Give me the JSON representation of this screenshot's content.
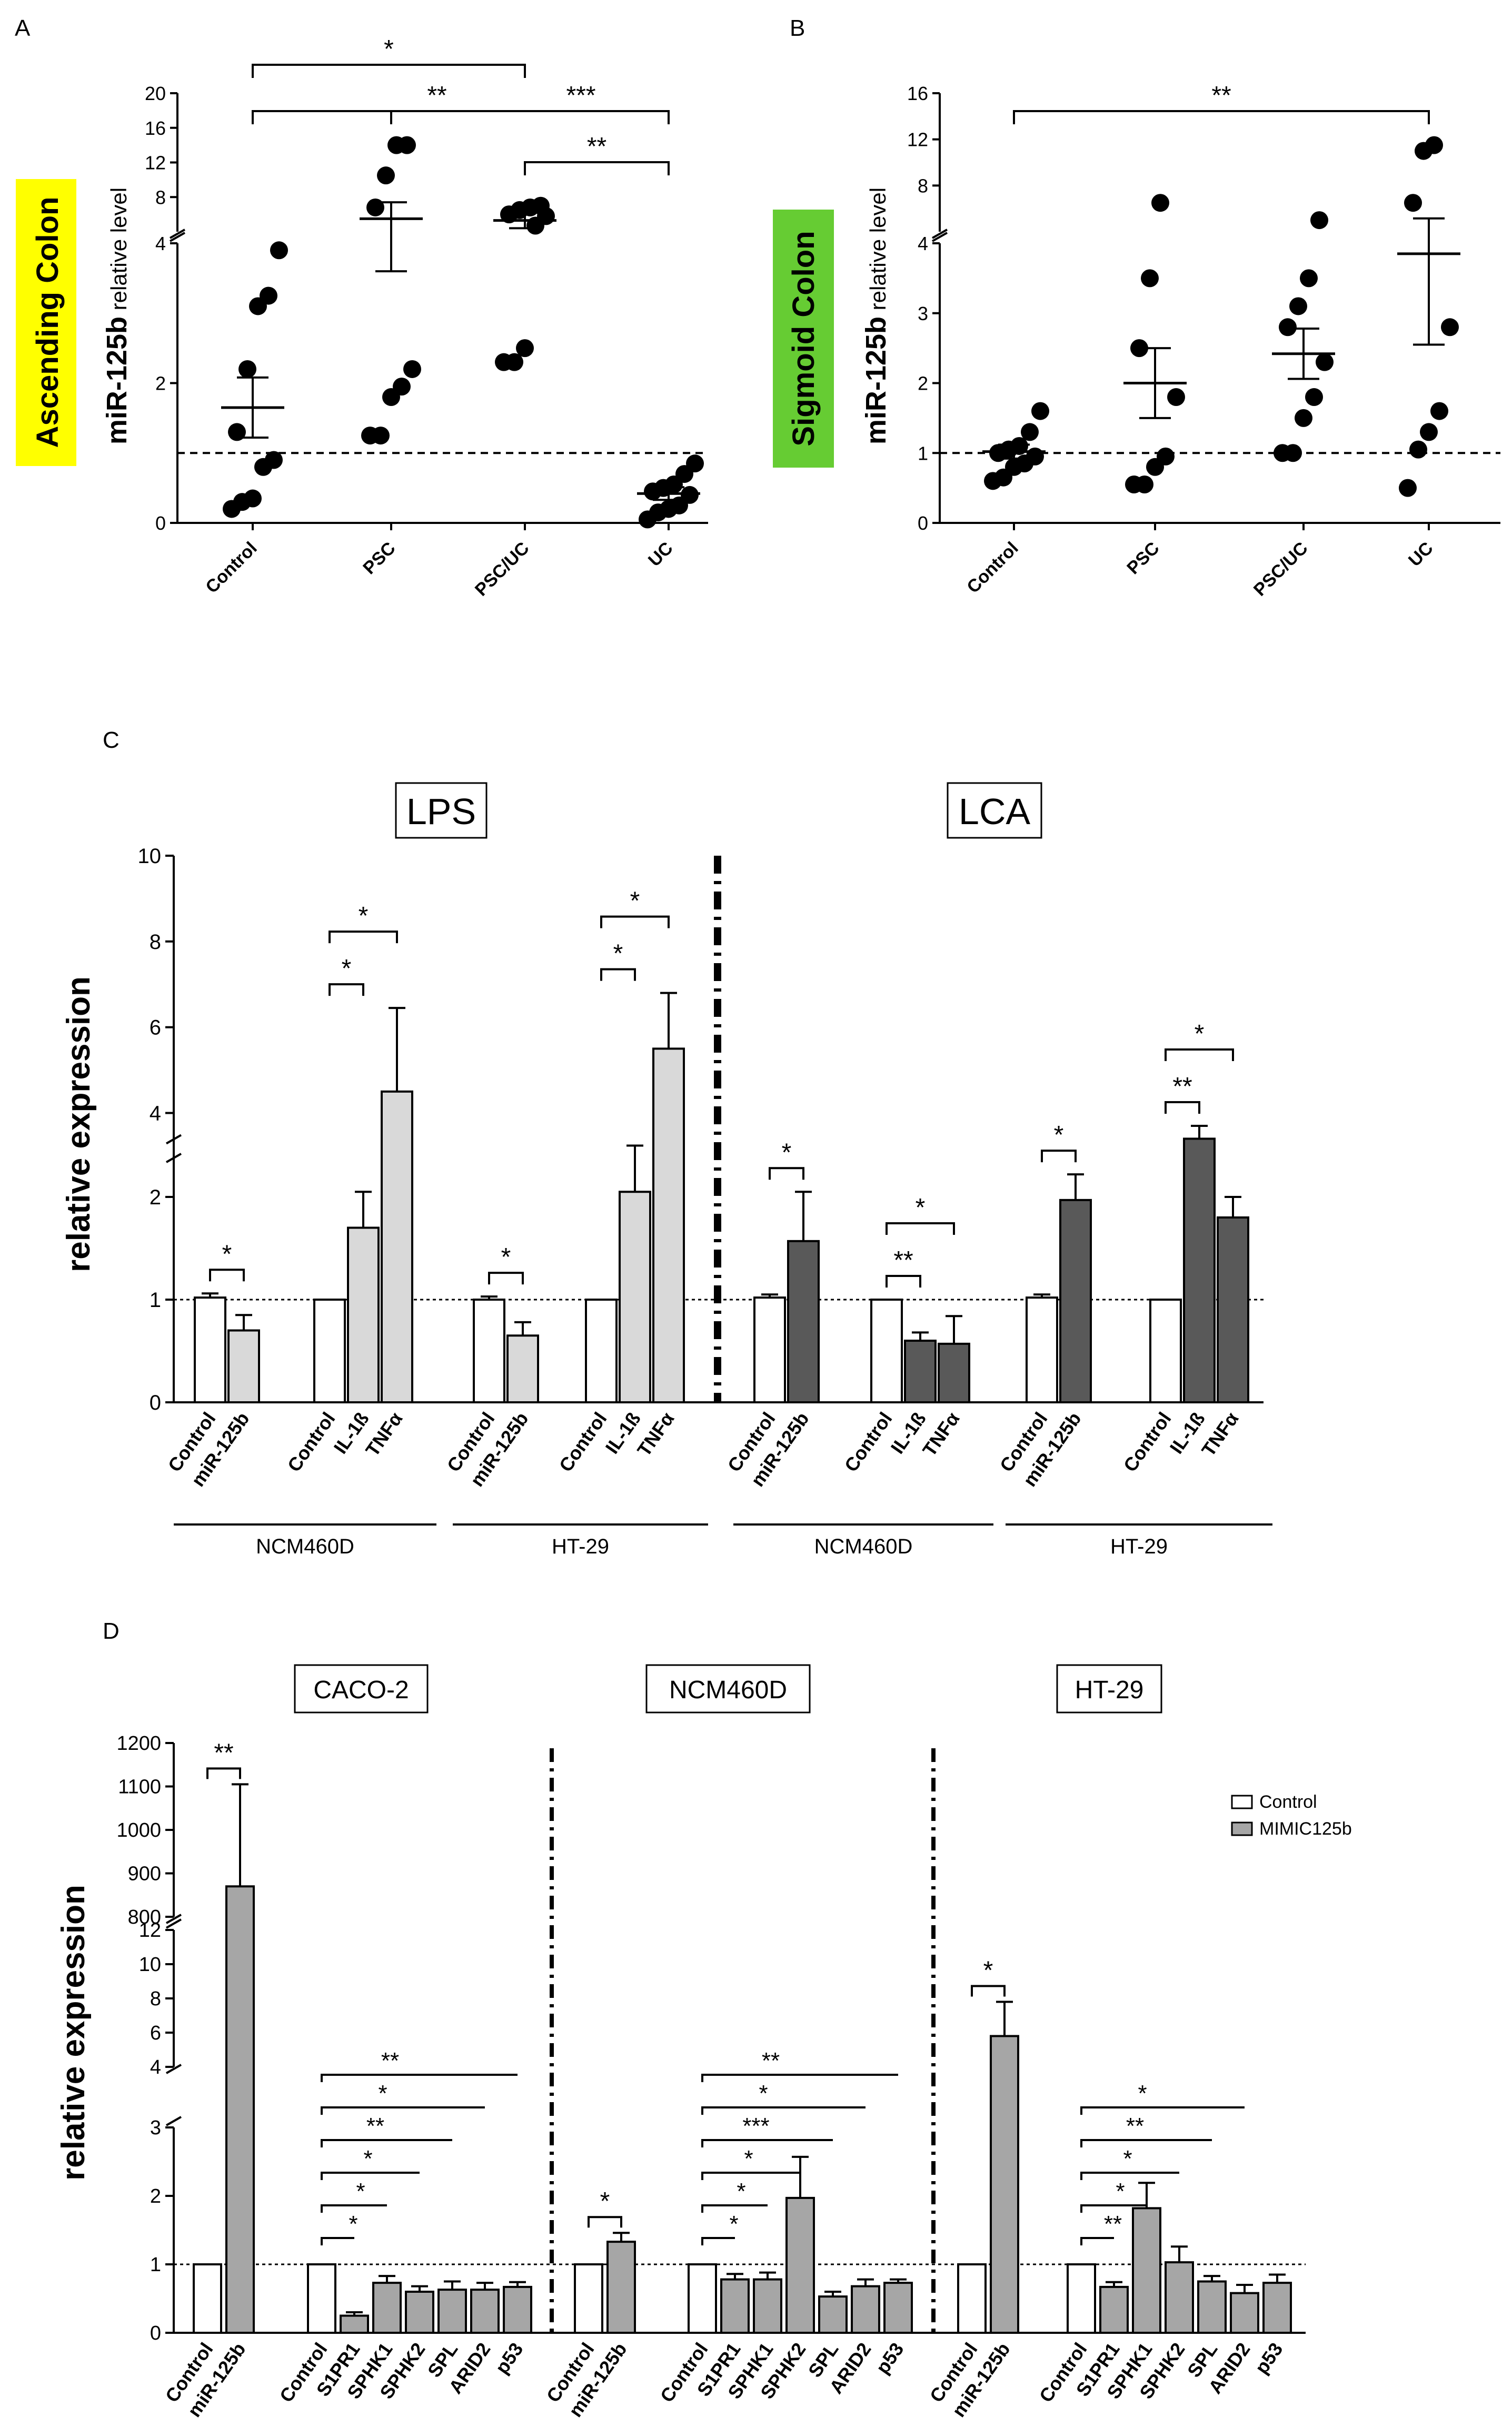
{
  "panels": {
    "A": "A",
    "B": "B",
    "C": "C",
    "D": "D"
  },
  "colors": {
    "highlight_yellow": "#ffff00",
    "highlight_green": "#66cc33",
    "bar_light": "#d9d9d9",
    "bar_dark": "#595959",
    "bar_mid": "#a6a6a6",
    "bar_white": "#ffffff"
  },
  "chart_data": [
    {
      "id": "A",
      "type": "scatter",
      "title": "Ascending Colon",
      "ylabel_main": "miR-125b",
      "ylabel_sub": " relative level",
      "categories": [
        "Control",
        "PSC",
        "PSC/UC",
        "UC"
      ],
      "ylim_low": [
        0,
        4
      ],
      "yticks_low": [
        0,
        2,
        4
      ],
      "ylim_high": [
        4,
        20
      ],
      "yticks_high": [
        4,
        8,
        12,
        16,
        20
      ],
      "reference_line": 1,
      "points": [
        [
          0.2,
          0.3,
          0.35,
          0.8,
          0.9,
          1.3,
          2.2,
          3.1,
          3.25,
          3.9
        ],
        [
          1.25,
          1.25,
          1.8,
          1.95,
          2.2,
          6.8,
          10.5,
          14.0,
          14.0
        ],
        [
          2.3,
          2.3,
          2.5,
          4.7,
          5.8,
          6.0,
          6.5,
          6.8,
          7.0
        ],
        [
          0.05,
          0.15,
          0.2,
          0.25,
          0.4,
          0.45,
          0.5,
          0.55,
          0.7,
          0.85
        ]
      ],
      "mean": [
        1.65,
        5.5,
        5.3,
        0.42
      ],
      "sem": [
        0.43,
        1.9,
        0.9,
        0.09
      ],
      "significance": [
        {
          "from": "Control",
          "to": "PSC/UC",
          "label": "*"
        },
        {
          "from": "Control",
          "to": "UC",
          "label": "**",
          "mid_label": "***"
        },
        {
          "from": "PSC/UC",
          "to": "UC",
          "label": "**"
        }
      ]
    },
    {
      "id": "B",
      "type": "scatter",
      "title": "Sigmoid Colon",
      "ylabel_main": "miR-125b",
      "ylabel_sub": " relative level",
      "categories": [
        "Control",
        "PSC",
        "PSC/UC",
        "UC"
      ],
      "ylim_low": [
        0,
        4
      ],
      "yticks_low": [
        0,
        1,
        2,
        3,
        4
      ],
      "ylim_high": [
        4,
        16
      ],
      "yticks_high": [
        4,
        8,
        12,
        16
      ],
      "reference_line": 1,
      "points": [
        [
          0.6,
          0.65,
          0.8,
          0.85,
          0.95,
          1.0,
          1.05,
          1.1,
          1.3,
          1.6
        ],
        [
          0.55,
          0.55,
          0.8,
          0.95,
          1.8,
          2.5,
          3.5,
          6.5
        ],
        [
          1.0,
          1.0,
          1.5,
          1.8,
          2.3,
          2.8,
          3.1,
          3.5,
          5.0
        ],
        [
          0.5,
          1.05,
          1.3,
          1.6,
          2.8,
          6.5,
          11.0,
          11.5
        ]
      ],
      "mean": [
        1.02,
        2.0,
        2.42,
        3.85
      ],
      "sem": [
        0.1,
        0.5,
        0.36,
        1.3
      ],
      "significance": [
        {
          "from": "Control",
          "to": "UC",
          "label": "**"
        }
      ]
    },
    {
      "id": "C",
      "type": "bar",
      "ylabel": "relative expression",
      "group_titles": [
        "LPS",
        "LCA"
      ],
      "ylim_low": [
        0,
        2.5
      ],
      "yticks_low": [
        0,
        1,
        2
      ],
      "ylim_high": [
        3,
        10
      ],
      "yticks_high": [
        4,
        6,
        8,
        10
      ],
      "reference_line": 1,
      "groups": [
        {
          "treatment": "LPS",
          "cell": "NCM460D",
          "clusters": [
            {
              "labels": [
                "Control",
                "miR-125b"
              ],
              "values": [
                1.02,
                0.7
              ],
              "errors": [
                0.04,
                0.15
              ],
              "sig": [
                {
                  "i": 0,
                  "j": 1,
                  "label": "*"
                }
              ]
            },
            {
              "labels": [
                "Control",
                "IL-1ß",
                "TNFα"
              ],
              "values": [
                1.0,
                1.7,
                4.5
              ],
              "errors": [
                0,
                0.35,
                1.95
              ],
              "sig": [
                {
                  "i": 0,
                  "j": 1,
                  "label": "*"
                },
                {
                  "i": 0,
                  "j": 2,
                  "label": "*"
                }
              ]
            }
          ]
        },
        {
          "treatment": "LPS",
          "cell": "HT-29",
          "clusters": [
            {
              "labels": [
                "Control",
                "miR-125b"
              ],
              "values": [
                1.0,
                0.65
              ],
              "errors": [
                0.03,
                0.13
              ],
              "sig": [
                {
                  "i": 0,
                  "j": 1,
                  "label": "*"
                }
              ]
            },
            {
              "labels": [
                "Control",
                "IL-1ß",
                "TNFα"
              ],
              "values": [
                1.0,
                2.05,
                5.5
              ],
              "errors": [
                0,
                0.45,
                1.3
              ],
              "sig": [
                {
                  "i": 0,
                  "j": 1,
                  "label": "*"
                },
                {
                  "i": 0,
                  "j": 2,
                  "label": "*"
                }
              ]
            }
          ]
        },
        {
          "treatment": "LCA",
          "cell": "NCM460D",
          "clusters": [
            {
              "labels": [
                "Control",
                "miR-125b"
              ],
              "values": [
                1.02,
                1.57
              ],
              "errors": [
                0.03,
                0.48
              ],
              "sig": [
                {
                  "i": 0,
                  "j": 1,
                  "label": "*"
                }
              ]
            },
            {
              "labels": [
                "Control",
                "IL-1ß",
                "TNFα"
              ],
              "values": [
                1.0,
                0.6,
                0.57
              ],
              "errors": [
                0,
                0.08,
                0.27
              ],
              "sig": [
                {
                  "i": 0,
                  "j": 1,
                  "label": "**"
                },
                {
                  "i": 0,
                  "j": 2,
                  "label": "*"
                }
              ]
            }
          ]
        },
        {
          "treatment": "LCA",
          "cell": "HT-29",
          "clusters": [
            {
              "labels": [
                "Control",
                "miR-125b"
              ],
              "values": [
                1.02,
                1.97
              ],
              "errors": [
                0.03,
                0.25
              ],
              "sig": [
                {
                  "i": 0,
                  "j": 1,
                  "label": "*"
                }
              ]
            },
            {
              "labels": [
                "Control",
                "IL-1ß",
                "TNFα"
              ],
              "values": [
                1.0,
                3.4,
                1.8
              ],
              "errors": [
                0,
                0.3,
                0.2
              ],
              "sig": [
                {
                  "i": 0,
                  "j": 1,
                  "label": "**"
                },
                {
                  "i": 0,
                  "j": 2,
                  "label": "*"
                }
              ]
            }
          ]
        }
      ]
    },
    {
      "id": "D",
      "type": "bar",
      "ylabel": "relative expression",
      "legend": [
        {
          "name": "Control",
          "color": "#ffffff"
        },
        {
          "name": "MIMIC125b",
          "color": "#a6a6a6"
        }
      ],
      "yticks_low": [
        0,
        1,
        2,
        3
      ],
      "yticks_mid": [
        4,
        6,
        8,
        10,
        12
      ],
      "yticks_high": [
        800,
        900,
        1000,
        1100,
        1200
      ],
      "reference_line": 1,
      "groups": [
        {
          "cell": "CACO-2",
          "mimic": {
            "labels": [
              "Control",
              "miR-125b"
            ],
            "values": [
              1.0,
              870
            ],
            "errors": [
              0,
              235
            ],
            "sig": {
              "label": "**"
            }
          },
          "genes": {
            "labels": [
              "Control",
              "S1PR1",
              "SPHK1",
              "SPHK2",
              "SPL",
              "ARID2",
              "p53"
            ],
            "values": [
              1.0,
              0.25,
              0.73,
              0.6,
              0.63,
              0.63,
              0.67
            ],
            "errors": [
              0,
              0.05,
              0.1,
              0.08,
              0.12,
              0.1,
              0.07
            ],
            "sig": [
              "*",
              "*",
              "*",
              "**",
              "*",
              "**"
            ]
          }
        },
        {
          "cell": "NCM460D",
          "mimic": {
            "labels": [
              "Control",
              "miR-125b"
            ],
            "values": [
              1.0,
              1.33
            ],
            "errors": [
              0,
              0.13
            ],
            "sig": {
              "label": "*"
            }
          },
          "genes": {
            "labels": [
              "Control",
              "S1PR1",
              "SPHK1",
              "SPHK2",
              "SPL",
              "ARID2",
              "p53"
            ],
            "values": [
              1.0,
              0.78,
              0.78,
              1.97,
              0.53,
              0.68,
              0.73
            ],
            "errors": [
              0,
              0.08,
              0.1,
              0.6,
              0.07,
              0.1,
              0.05
            ],
            "sig": [
              "*",
              "*",
              "*",
              "***",
              "*",
              "**"
            ]
          }
        },
        {
          "cell": "HT-29",
          "mimic": {
            "labels": [
              "Control",
              "miR-125b"
            ],
            "values": [
              1.0,
              5.8
            ],
            "errors": [
              0,
              2.0
            ],
            "sig": {
              "label": "*"
            }
          },
          "genes": {
            "labels": [
              "Control",
              "S1PR1",
              "SPHK1",
              "SPHK2",
              "SPL",
              "ARID2",
              "p53"
            ],
            "values": [
              1.0,
              0.67,
              1.82,
              1.03,
              0.75,
              0.58,
              0.73
            ],
            "errors": [
              0,
              0.07,
              0.37,
              0.23,
              0.08,
              0.12,
              0.12
            ],
            "sig": [
              "**",
              "*",
              "*",
              "**",
              "*"
            ]
          }
        }
      ]
    }
  ]
}
